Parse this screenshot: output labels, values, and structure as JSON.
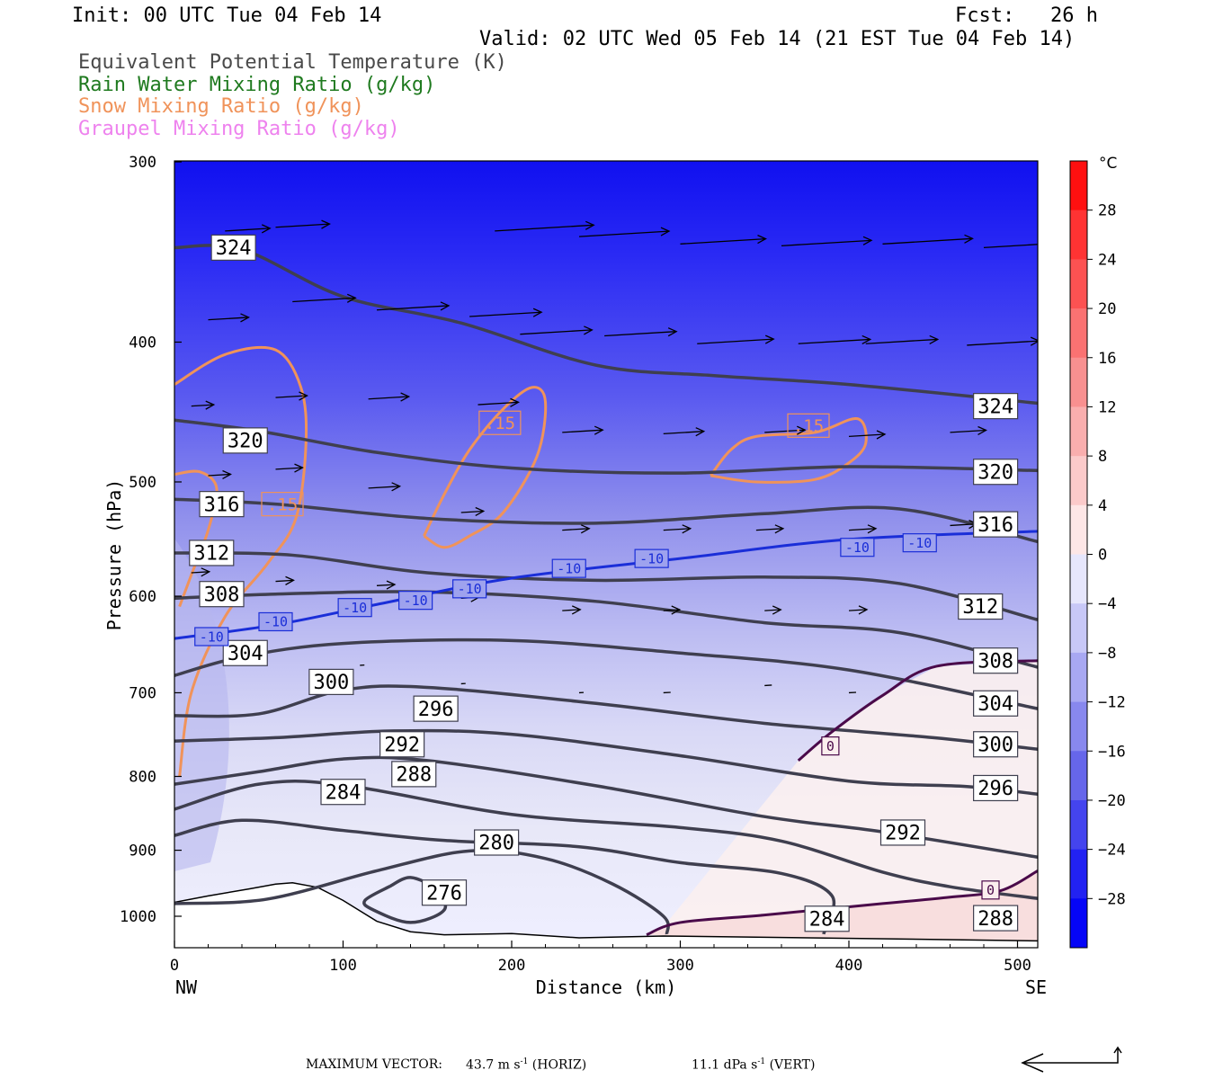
{
  "header": {
    "init": "Init: 00 UTC Tue 04 Feb 14",
    "fcst": "Fcst:   26 h",
    "valid": "Valid: 02 UTC Wed 05 Feb 14 (21 EST Tue 04 Feb 14)"
  },
  "legend": [
    {
      "text": "Equivalent Potential Temperature (K)",
      "color": "#4a4a4a"
    },
    {
      "text": "Rain Water Mixing Ratio (g/kg)",
      "color": "#1f7a1f"
    },
    {
      "text": "Snow Mixing Ratio (g/kg)",
      "color": "#f0935a"
    },
    {
      "text": "Graupel Mixing Ratio (g/kg)",
      "color": "#ee82ee"
    }
  ],
  "axes": {
    "ylabel": "Pressure (hPa)",
    "xlabel": "Distance (km)",
    "left_end": "NW",
    "right_end": "SE",
    "y_ticks": [
      300,
      400,
      500,
      600,
      700,
      800,
      900,
      1000
    ],
    "x_ticks": [
      0,
      100,
      200,
      300,
      400,
      500
    ]
  },
  "colorbar": {
    "unit": "°C",
    "labels": [
      "28",
      "24",
      "20",
      "16",
      "12",
      "8",
      "4",
      "0",
      "−4",
      "−8",
      "−12",
      "−16",
      "−20",
      "−24",
      "−28"
    ]
  },
  "footer": {
    "max_vector_label": "MAXIMUM VECTOR:",
    "horiz_value": "43.7 m s",
    "horiz_unit": "(HORIZ)",
    "vert_value": "11.1 dPa s",
    "vert_unit": "(VERT)",
    "exponent": "-1"
  },
  "chart_data": {
    "type": "contour",
    "x_range_km": [
      0,
      512
    ],
    "y_range_hpa": [
      300,
      1030
    ],
    "y_scale": "log",
    "theta_e_contours": [
      {
        "label": "324",
        "points": [
          [
            0,
            344
          ],
          [
            40,
            345
          ],
          [
            100,
            372
          ],
          [
            170,
            388
          ],
          [
            250,
            415
          ],
          [
            320,
            422
          ],
          [
            400,
            428
          ],
          [
            512,
            441
          ]
        ]
      },
      {
        "label": "320",
        "points": [
          [
            0,
            453
          ],
          [
            50,
            461
          ],
          [
            120,
            477
          ],
          [
            200,
            489
          ],
          [
            300,
            493
          ],
          [
            400,
            488
          ],
          [
            512,
            491
          ]
        ]
      },
      {
        "label": "316",
        "points": [
          [
            0,
            514
          ],
          [
            60,
            518
          ],
          [
            150,
            530
          ],
          [
            250,
            534
          ],
          [
            350,
            526
          ],
          [
            430,
            522
          ],
          [
            512,
            550
          ]
        ]
      },
      {
        "label": "312",
        "points": [
          [
            0,
            560
          ],
          [
            70,
            562
          ],
          [
            150,
            578
          ],
          [
            250,
            585
          ],
          [
            350,
            582
          ],
          [
            430,
            588
          ],
          [
            512,
            623
          ]
        ]
      },
      {
        "label": "308",
        "points": [
          [
            0,
            602
          ],
          [
            60,
            598
          ],
          [
            150,
            596
          ],
          [
            250,
            605
          ],
          [
            350,
            626
          ],
          [
            430,
            636
          ],
          [
            512,
            672
          ]
        ]
      },
      {
        "label": "304",
        "points": [
          [
            0,
            681
          ],
          [
            40,
            661
          ],
          [
            100,
            647
          ],
          [
            200,
            644
          ],
          [
            300,
            657
          ],
          [
            400,
            675
          ],
          [
            512,
            718
          ]
        ]
      },
      {
        "label": "300",
        "points": [
          [
            0,
            726
          ],
          [
            50,
            724
          ],
          [
            100,
            697
          ],
          [
            150,
            694
          ],
          [
            250,
            712
          ],
          [
            350,
            735
          ],
          [
            450,
            752
          ],
          [
            512,
            766
          ]
        ]
      },
      {
        "label": "296",
        "points": [
          [
            0,
            756
          ],
          [
            60,
            752
          ],
          [
            130,
            744
          ],
          [
            200,
            748
          ],
          [
            300,
            774
          ],
          [
            400,
            806
          ],
          [
            470,
            813
          ],
          [
            512,
            823
          ]
        ]
      },
      {
        "label": "292",
        "points": [
          [
            0,
            810
          ],
          [
            50,
            794
          ],
          [
            100,
            778
          ],
          [
            150,
            780
          ],
          [
            250,
            812
          ],
          [
            350,
            853
          ],
          [
            420,
            874
          ],
          [
            512,
            910
          ]
        ]
      },
      {
        "label": "288",
        "points": [
          [
            0,
            843
          ],
          [
            50,
            810
          ],
          [
            100,
            811
          ],
          [
            200,
            850
          ],
          [
            300,
            868
          ],
          [
            360,
            887
          ],
          [
            420,
            932
          ],
          [
            460,
            954
          ],
          [
            512,
            972
          ]
        ]
      },
      {
        "label": "284",
        "points": [
          [
            0,
            879
          ],
          [
            40,
            858
          ],
          [
            100,
            872
          ],
          [
            160,
            886
          ],
          [
            240,
            895
          ],
          [
            300,
            918
          ],
          [
            360,
            934
          ],
          [
            390,
            968
          ],
          [
            385,
            1029
          ]
        ]
      },
      {
        "label": "280",
        "points": [
          [
            0,
            980
          ],
          [
            55,
            973
          ],
          [
            120,
            930
          ],
          [
            175,
            901
          ],
          [
            220,
            912
          ],
          [
            260,
            950
          ],
          [
            290,
            1000
          ],
          [
            292,
            1029
          ]
        ]
      },
      {
        "label": "276",
        "points": [
          [
            128,
            953
          ],
          [
            140,
            940
          ],
          [
            155,
            958
          ],
          [
            160,
            990
          ],
          [
            140,
            1010
          ],
          [
            118,
            990
          ],
          [
            113,
            975
          ],
          [
            128,
            953
          ]
        ]
      }
    ],
    "temperature_isotherms_C": [
      {
        "label": "-10",
        "points": [
          [
            0,
            642
          ],
          [
            60,
            628
          ],
          [
            120,
            608
          ],
          [
            200,
            583
          ],
          [
            300,
            565
          ],
          [
            400,
            548
          ],
          [
            512,
            541
          ]
        ]
      },
      {
        "label": "0",
        "points": [
          [
            370,
            780
          ],
          [
            390,
            745
          ],
          [
            420,
            703
          ],
          [
            452,
            671
          ],
          [
            512,
            665
          ]
        ]
      },
      {
        "label": "0",
        "points": [
          [
            280,
            1030
          ],
          [
            300,
            1010
          ],
          [
            350,
            998
          ],
          [
            420,
            980
          ],
          [
            460,
            970
          ],
          [
            490,
            960
          ],
          [
            512,
            930
          ]
        ]
      }
    ],
    "snow_contours": [
      {
        "label": ".15"
      },
      {
        "label": ".15"
      },
      {
        "label": ".15"
      }
    ],
    "colorbar_range_C": [
      -32,
      32
    ],
    "colorbar_step_C": 4,
    "max_vector": {
      "horiz_m_s": 43.7,
      "vert_dPa_s": 11.1
    }
  }
}
